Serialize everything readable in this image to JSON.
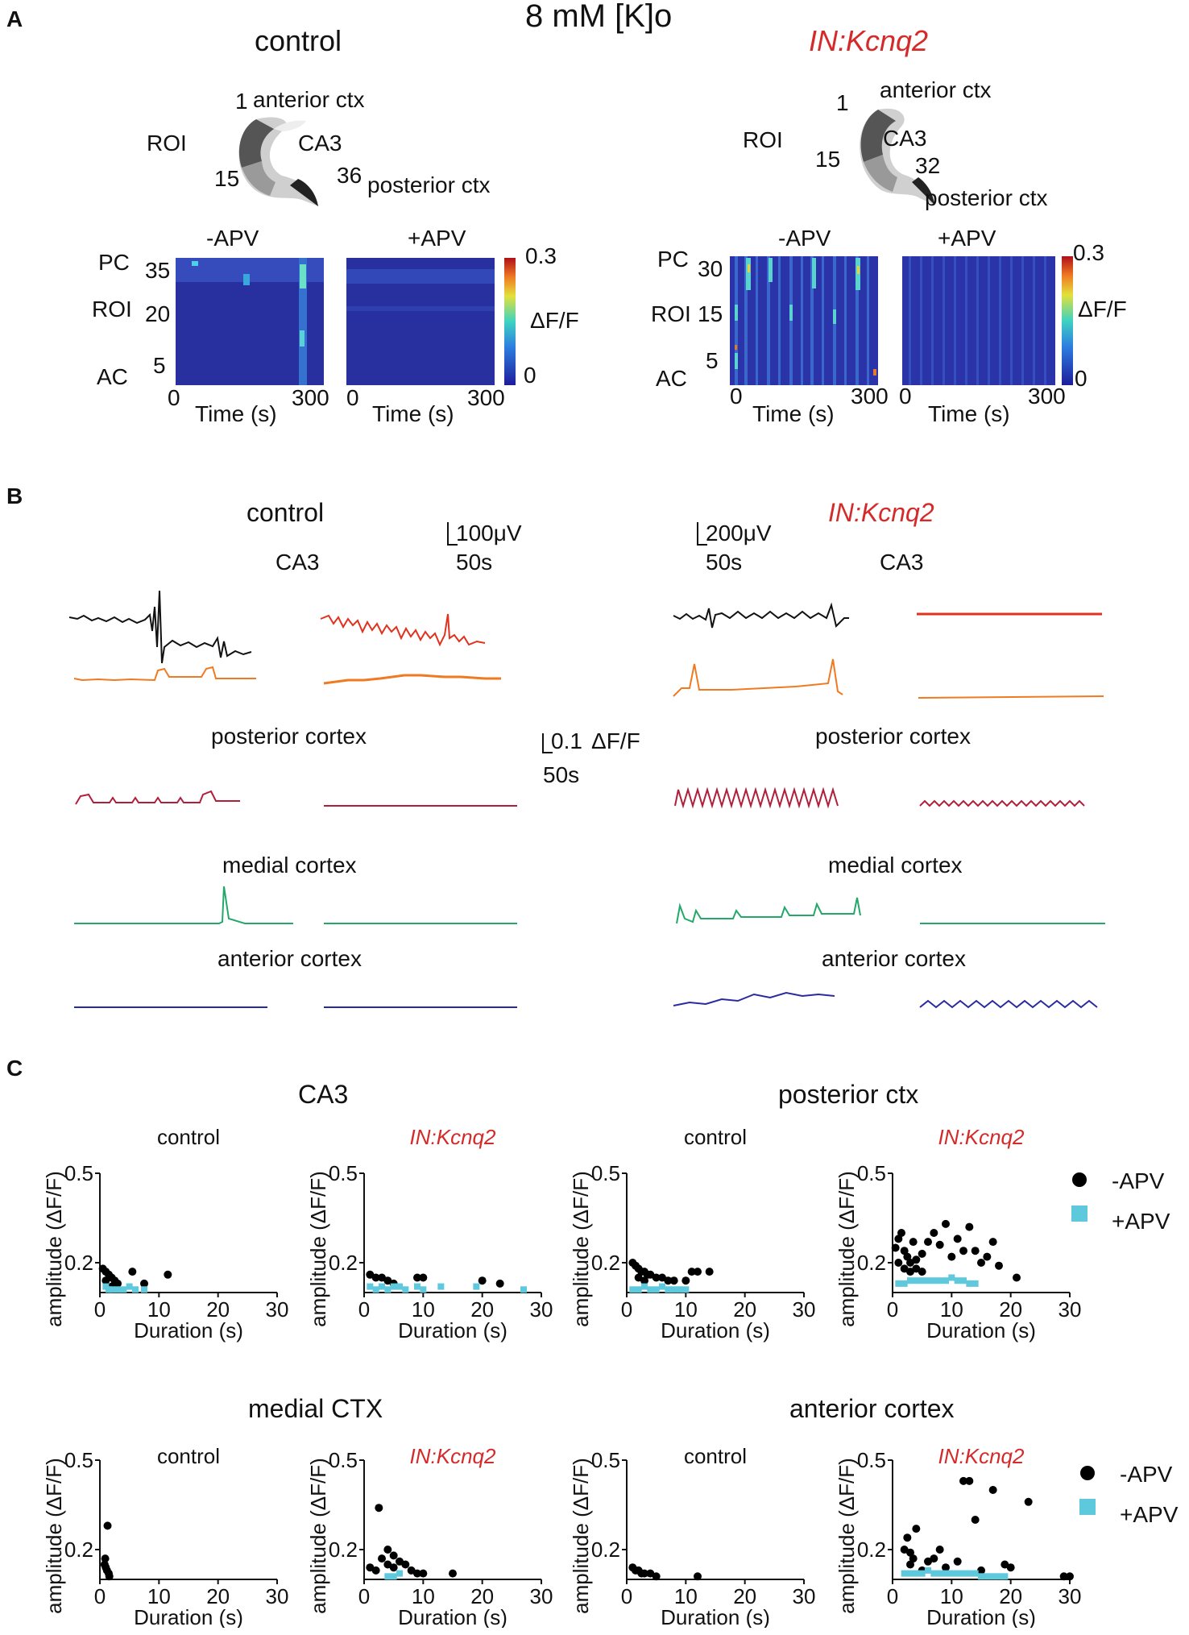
{
  "figure": {
    "panel_A": {
      "letter": "A",
      "condition": "8 mM [K]o",
      "left": {
        "title": "control",
        "diagram": {
          "roi": "ROI",
          "n1": "1",
          "anterior": "anterior ctx",
          "ca3": "CA3",
          "n15": "15",
          "n36": "36",
          "posterior": "posterior ctx"
        },
        "maps": [
          {
            "label": "-APV"
          },
          {
            "label": "+APV"
          }
        ],
        "yticks": {
          "pc": "PC",
          "roi": "ROI",
          "ac": "AC",
          "t1": "35",
          "t2": "20",
          "t3": "5"
        },
        "xticks": [
          "0",
          "300"
        ],
        "xlabel": "Time (s)",
        "colorbar": {
          "max": "0.3",
          "min": "0",
          "label": "ΔF/F"
        }
      },
      "right": {
        "title": "IN:Kcnq2",
        "diagram": {
          "roi": "ROI",
          "n1": "1",
          "anterior": "anterior ctx",
          "ca3": "CA3",
          "n15": "15",
          "n32": "32",
          "posterior": "posterior ctx"
        },
        "maps": [
          {
            "label": "-APV"
          },
          {
            "label": "+APV"
          }
        ],
        "yticks": {
          "pc": "PC",
          "roi": "ROI",
          "ac": "AC",
          "t1": "30",
          "t2": "15",
          "t3": "5"
        },
        "xticks": [
          "0",
          "300"
        ],
        "xlabel": "Time (s)",
        "colorbar": {
          "max": "0.3",
          "min": "0",
          "label": "ΔF/F"
        }
      }
    },
    "panel_B": {
      "letter": "B",
      "left_title": "control",
      "right_title": "IN:Kcnq2",
      "left_scale": {
        "v": "100μV",
        "t": "50s"
      },
      "right_scale": {
        "v": "200μV",
        "t": "50s"
      },
      "mid_scale": {
        "v": "0.1",
        "unit": "ΔF/F",
        "t": "50s"
      },
      "regions": {
        "ca3": "CA3",
        "posterior": "posterior cortex",
        "medial": "medial cortex",
        "anterior": "anterior cortex"
      }
    },
    "panel_C": {
      "letter": "C",
      "row1_left_title": "CA3",
      "row1_right_title": "posterior ctx",
      "row2_left_title": "medial CTX",
      "row2_right_title": "anterior cortex",
      "legend": {
        "minus": "-APV",
        "plus": "+APV"
      },
      "colors": {
        "minus": "#000000",
        "plus": "#5ec8dd"
      }
    }
  },
  "chart_data": [
    {
      "type": "scatter",
      "id": "ca3-control",
      "title": "control",
      "xlabel": "Duration (s)",
      "ylabel": "amplitude (ΔF/F)",
      "xlim": [
        0,
        30
      ],
      "ylim": [
        0.1,
        0.5
      ],
      "xticks": [
        "0",
        "10",
        "20",
        "30"
      ],
      "yticks": [
        "0.5",
        "0.2"
      ],
      "series": [
        {
          "name": "-APV",
          "points": [
            [
              0.5,
              0.18
            ],
            [
              1,
              0.17
            ],
            [
              1.5,
              0.16
            ],
            [
              2,
              0.15
            ],
            [
              2.5,
              0.14
            ],
            [
              3,
              0.13
            ],
            [
              5.5,
              0.17
            ],
            [
              7.5,
              0.13
            ],
            [
              11.5,
              0.16
            ],
            [
              1,
              0.14
            ],
            [
              2,
              0.12
            ]
          ]
        },
        {
          "name": "+APV",
          "points": [
            [
              1,
              0.12
            ],
            [
              2,
              0.11
            ],
            [
              3,
              0.11
            ],
            [
              4,
              0.11
            ],
            [
              5,
              0.12
            ],
            [
              6,
              0.11
            ],
            [
              7.5,
              0.11
            ],
            [
              1.5,
              0.11
            ]
          ]
        }
      ]
    },
    {
      "type": "scatter",
      "id": "ca3-kcnq2",
      "title": "IN:Kcnq2",
      "xlabel": "Duration (s)",
      "ylabel": "amplitude (ΔF/F)",
      "xlim": [
        0,
        30
      ],
      "ylim": [
        0.1,
        0.5
      ],
      "xticks": [
        "0",
        "10",
        "20",
        "30"
      ],
      "yticks": [
        "0.5",
        "0.2"
      ],
      "series": [
        {
          "name": "-APV",
          "points": [
            [
              1,
              0.16
            ],
            [
              2,
              0.15
            ],
            [
              3,
              0.15
            ],
            [
              4,
              0.14
            ],
            [
              5,
              0.13
            ],
            [
              9,
              0.15
            ],
            [
              10,
              0.15
            ],
            [
              20,
              0.14
            ],
            [
              23,
              0.13
            ]
          ]
        },
        {
          "name": "+APV",
          "points": [
            [
              1,
              0.12
            ],
            [
              2,
              0.11
            ],
            [
              3,
              0.12
            ],
            [
              4,
              0.11
            ],
            [
              5,
              0.12
            ],
            [
              6,
              0.12
            ],
            [
              7,
              0.11
            ],
            [
              9,
              0.12
            ],
            [
              10,
              0.11
            ],
            [
              13,
              0.12
            ],
            [
              19,
              0.12
            ],
            [
              27,
              0.11
            ]
          ]
        }
      ]
    },
    {
      "type": "scatter",
      "id": "post-control",
      "title": "control",
      "xlabel": "Duration (s)",
      "ylabel": "amplitude (ΔF/F)",
      "xlim": [
        0,
        30
      ],
      "ylim": [
        0.1,
        0.5
      ],
      "xticks": [
        "0",
        "10",
        "20",
        "30"
      ],
      "yticks": [
        "0.5",
        "0.2"
      ],
      "series": [
        {
          "name": "-APV",
          "points": [
            [
              1,
              0.2
            ],
            [
              1.5,
              0.19
            ],
            [
              2,
              0.18
            ],
            [
              2.5,
              0.17
            ],
            [
              3,
              0.17
            ],
            [
              3.5,
              0.16
            ],
            [
              4,
              0.16
            ],
            [
              5,
              0.15
            ],
            [
              6,
              0.15
            ],
            [
              7,
              0.14
            ],
            [
              8,
              0.14
            ],
            [
              10,
              0.14
            ],
            [
              11,
              0.17
            ],
            [
              12,
              0.17
            ],
            [
              14,
              0.17
            ],
            [
              2,
              0.15
            ],
            [
              3,
              0.14
            ]
          ]
        },
        {
          "name": "+APV",
          "points": [
            [
              1,
              0.11
            ],
            [
              2,
              0.11
            ],
            [
              3,
              0.12
            ],
            [
              4,
              0.11
            ],
            [
              5,
              0.11
            ],
            [
              6,
              0.12
            ],
            [
              7,
              0.11
            ],
            [
              8,
              0.11
            ],
            [
              9,
              0.11
            ],
            [
              10,
              0.11
            ]
          ]
        }
      ]
    },
    {
      "type": "scatter",
      "id": "post-kcnq2",
      "title": "IN:Kcnq2",
      "xlabel": "Duration (s)",
      "ylabel": "amplitude (ΔF/F)",
      "xlim": [
        0,
        30
      ],
      "ylim": [
        0.1,
        0.5
      ],
      "xticks": [
        "0",
        "10",
        "20",
        "30"
      ],
      "yticks": [
        "0.5",
        "0.2"
      ],
      "series": [
        {
          "name": "-APV",
          "points": [
            [
              0.5,
              0.25
            ],
            [
              1,
              0.28
            ],
            [
              1.5,
              0.3
            ],
            [
              2,
              0.24
            ],
            [
              2.5,
              0.22
            ],
            [
              3,
              0.2
            ],
            [
              3.5,
              0.27
            ],
            [
              4,
              0.21
            ],
            [
              5,
              0.23
            ],
            [
              6,
              0.27
            ],
            [
              7,
              0.3
            ],
            [
              8,
              0.26
            ],
            [
              9,
              0.33
            ],
            [
              10,
              0.22
            ],
            [
              11,
              0.28
            ],
            [
              12,
              0.24
            ],
            [
              13,
              0.32
            ],
            [
              14,
              0.24
            ],
            [
              15,
              0.2
            ],
            [
              16,
              0.22
            ],
            [
              17,
              0.27
            ],
            [
              18,
              0.19
            ],
            [
              21,
              0.15
            ],
            [
              1,
              0.2
            ],
            [
              2,
              0.18
            ],
            [
              3,
              0.17
            ],
            [
              4,
              0.18
            ],
            [
              5,
              0.17
            ]
          ]
        },
        {
          "name": "+APV",
          "points": [
            [
              1,
              0.13
            ],
            [
              2,
              0.13
            ],
            [
              3,
              0.14
            ],
            [
              4,
              0.14
            ],
            [
              5,
              0.14
            ],
            [
              6,
              0.14
            ],
            [
              7,
              0.14
            ],
            [
              8,
              0.14
            ],
            [
              9,
              0.14
            ],
            [
              10,
              0.15
            ],
            [
              11,
              0.14
            ],
            [
              12,
              0.14
            ],
            [
              13,
              0.13
            ],
            [
              14,
              0.13
            ]
          ]
        }
      ]
    },
    {
      "type": "scatter",
      "id": "med-control",
      "title": "control",
      "xlabel": "Duration (s)",
      "ylabel": "amplitude (ΔF/F)",
      "xlim": [
        0,
        30
      ],
      "ylim": [
        0.1,
        0.5
      ],
      "xticks": [
        "0",
        "10",
        "20",
        "30"
      ],
      "yticks": [
        "0.5",
        "0.2"
      ],
      "series": [
        {
          "name": "-APV",
          "points": [
            [
              0.8,
              0.15
            ],
            [
              1,
              0.14
            ],
            [
              1.2,
              0.13
            ],
            [
              1.5,
              0.12
            ],
            [
              1.3,
              0.28
            ],
            [
              0.9,
              0.17
            ],
            [
              1.6,
              0.11
            ]
          ]
        },
        {
          "name": "+APV",
          "points": []
        }
      ]
    },
    {
      "type": "scatter",
      "id": "med-kcnq2",
      "title": "IN:Kcnq2",
      "xlabel": "Duration (s)",
      "ylabel": "amplitude (ΔF/F)",
      "xlim": [
        0,
        30
      ],
      "ylim": [
        0.1,
        0.5
      ],
      "xticks": [
        "0",
        "10",
        "20",
        "30"
      ],
      "yticks": [
        "0.5",
        "0.2"
      ],
      "series": [
        {
          "name": "-APV",
          "points": [
            [
              1,
              0.14
            ],
            [
              2,
              0.13
            ],
            [
              3,
              0.17
            ],
            [
              4,
              0.15
            ],
            [
              5,
              0.18
            ],
            [
              6,
              0.16
            ],
            [
              7,
              0.15
            ],
            [
              8,
              0.13
            ],
            [
              9,
              0.12
            ],
            [
              10,
              0.12
            ],
            [
              15,
              0.12
            ],
            [
              2.5,
              0.34
            ],
            [
              4,
              0.2
            ],
            [
              5,
              0.14
            ]
          ]
        },
        {
          "name": "+APV",
          "points": [
            [
              4,
              0.11
            ],
            [
              5,
              0.11
            ],
            [
              6,
              0.12
            ]
          ]
        }
      ]
    },
    {
      "type": "scatter",
      "id": "ant-control",
      "title": "control",
      "xlabel": "Duration (s)",
      "ylabel": "amplitude (ΔF/F)",
      "xlim": [
        0,
        30
      ],
      "ylim": [
        0.1,
        0.5
      ],
      "xticks": [
        "0",
        "10",
        "20",
        "30"
      ],
      "yticks": [
        "0.5",
        "0.2"
      ],
      "series": [
        {
          "name": "-APV",
          "points": [
            [
              1,
              0.14
            ],
            [
              1.5,
              0.13
            ],
            [
              2,
              0.13
            ],
            [
              2.5,
              0.12
            ],
            [
              3,
              0.12
            ],
            [
              4,
              0.12
            ],
            [
              5,
              0.11
            ],
            [
              12,
              0.11
            ]
          ]
        },
        {
          "name": "+APV",
          "points": []
        }
      ]
    },
    {
      "type": "scatter",
      "id": "ant-kcnq2",
      "title": "IN:Kcnq2",
      "xlabel": "Duration (s)",
      "ylabel": "amplitude (ΔF/F)",
      "xlim": [
        0,
        30
      ],
      "ylim": [
        0.1,
        0.5
      ],
      "xticks": [
        "0",
        "10",
        "20",
        "30"
      ],
      "yticks": [
        "0.5",
        "0.2"
      ],
      "series": [
        {
          "name": "-APV",
          "points": [
            [
              2,
              0.2
            ],
            [
              2.5,
              0.24
            ],
            [
              3,
              0.15
            ],
            [
              4,
              0.27
            ],
            [
              5,
              0.13
            ],
            [
              6,
              0.16
            ],
            [
              7,
              0.17
            ],
            [
              8,
              0.2
            ],
            [
              9,
              0.14
            ],
            [
              11,
              0.16
            ],
            [
              12,
              0.43
            ],
            [
              13,
              0.43
            ],
            [
              14,
              0.3
            ],
            [
              15,
              0.13
            ],
            [
              17,
              0.4
            ],
            [
              19,
              0.15
            ],
            [
              20,
              0.14
            ],
            [
              23,
              0.36
            ],
            [
              29,
              0.11
            ],
            [
              30,
              0.11
            ],
            [
              3,
              0.19
            ],
            [
              3.5,
              0.17
            ]
          ]
        },
        {
          "name": "+APV",
          "points": [
            [
              2,
              0.12
            ],
            [
              3,
              0.12
            ],
            [
              4,
              0.12
            ],
            [
              5,
              0.12
            ],
            [
              6,
              0.13
            ],
            [
              7,
              0.12
            ],
            [
              8,
              0.12
            ],
            [
              9,
              0.12
            ],
            [
              10,
              0.12
            ],
            [
              11,
              0.12
            ],
            [
              12,
              0.12
            ],
            [
              13,
              0.12
            ],
            [
              14,
              0.12
            ],
            [
              15,
              0.11
            ],
            [
              16,
              0.11
            ],
            [
              17,
              0.11
            ],
            [
              18,
              0.11
            ],
            [
              19,
              0.11
            ]
          ]
        }
      ]
    }
  ]
}
